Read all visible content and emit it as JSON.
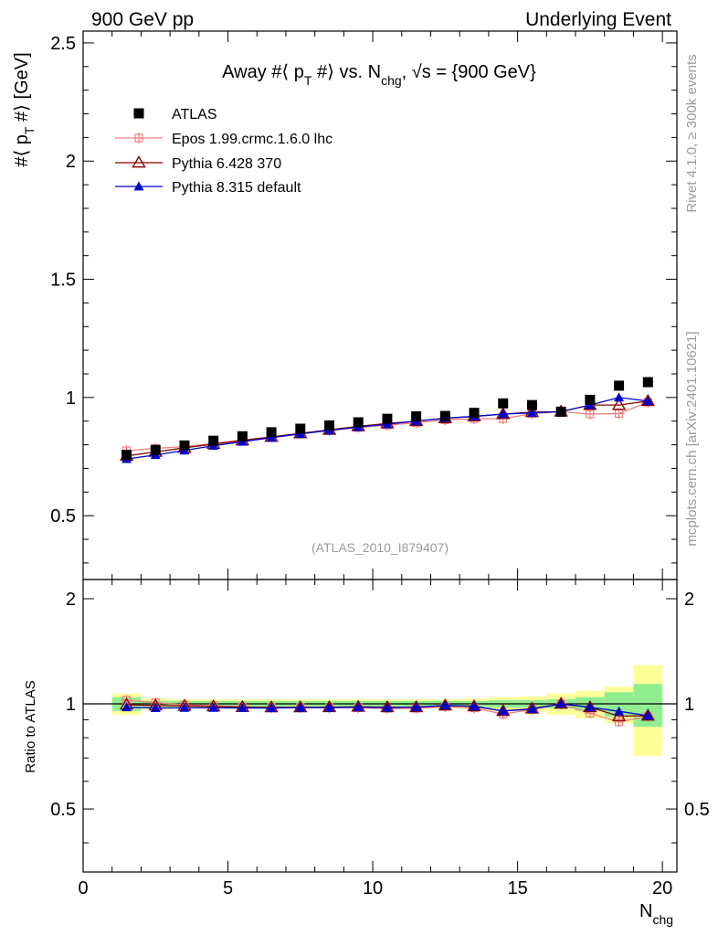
{
  "header": {
    "left": "900 GeV pp",
    "right": "Underlying Event"
  },
  "title": {
    "prefix": "Away #⟨ p",
    "sub_t": "T",
    "middle": " #⟩ vs. N",
    "sub_chg": "chg",
    "suffix": ", √s = {900 GeV}"
  },
  "side_text": {
    "rivet": "Rivet 4.1.0, ≥ 300k events",
    "mcplots": "mcplots.cern.ch [arXiv:2401.10621]"
  },
  "watermark": "(ATLAS_2010_I879407)",
  "colors": {
    "atlas": "#000000",
    "epos": "#f08080",
    "pythia6": "#8b0000",
    "pythia8": "#0000cd",
    "band_inner": "#90ee90",
    "band_outer": "#ffff99"
  },
  "chart_data": [
    {
      "type": "scatter",
      "panel": "main",
      "ylabel_parts": {
        "a": "#⟨ p",
        "sub": "T",
        "b": " #⟩ [GeV]"
      },
      "xlim": [
        0,
        20.5
      ],
      "ylim": [
        0.23,
        2.55
      ],
      "yticks": [
        0.5,
        1,
        1.5,
        2,
        2.5
      ],
      "ytick_labels": [
        "0.5",
        "1",
        "1.5",
        "2",
        "2.5"
      ],
      "x": [
        1.5,
        2.5,
        3.5,
        4.5,
        5.5,
        6.5,
        7.5,
        8.5,
        9.5,
        10.5,
        11.5,
        12.5,
        13.5,
        14.5,
        15.5,
        16.5,
        17.5,
        18.5,
        19.5
      ],
      "series": [
        {
          "name": "ATLAS",
          "key": "atlas",
          "marker": "square",
          "values": [
            0.757,
            0.778,
            0.797,
            0.817,
            0.836,
            0.853,
            0.868,
            0.882,
            0.895,
            0.91,
            0.92,
            0.922,
            0.935,
            0.975,
            0.968,
            0.94,
            0.99,
            1.05,
            1.065
          ]
        },
        {
          "name": "Epos 1.99.crmc.1.6.0 lhc",
          "key": "epos",
          "marker": "cross",
          "values": [
            0.775,
            0.785,
            0.792,
            0.806,
            0.82,
            0.833,
            0.848,
            0.86,
            0.873,
            0.883,
            0.893,
            0.905,
            0.91,
            0.91,
            0.932,
            0.94,
            0.93,
            0.932,
            0.98
          ]
        },
        {
          "name": "Pythia 6.428 370",
          "key": "pythia6",
          "marker": "triangle-open",
          "values": [
            0.753,
            0.77,
            0.787,
            0.803,
            0.818,
            0.833,
            0.848,
            0.863,
            0.878,
            0.89,
            0.9,
            0.912,
            0.92,
            0.93,
            0.938,
            0.94,
            0.968,
            0.968,
            0.985
          ]
        },
        {
          "name": "Pythia 8.315 default",
          "key": "pythia8",
          "marker": "triangle-filled",
          "values": [
            0.74,
            0.757,
            0.776,
            0.796,
            0.813,
            0.83,
            0.846,
            0.861,
            0.875,
            0.887,
            0.9,
            0.913,
            0.92,
            0.93,
            0.935,
            0.94,
            0.968,
            1.0,
            0.985
          ]
        }
      ]
    },
    {
      "type": "scatter",
      "panel": "ratio",
      "ylabel": "Ratio to ATLAS",
      "xlabel_parts": {
        "a": "N",
        "sub": "chg"
      },
      "xlim": [
        0,
        20.5
      ],
      "ylim": [
        0.33,
        2.27
      ],
      "xticks": [
        0,
        5,
        10,
        15,
        20
      ],
      "xtick_labels": [
        "0",
        "5",
        "10",
        "15",
        "20"
      ],
      "yticks": [
        0.5,
        1,
        2
      ],
      "ytick_labels": [
        "0.5",
        "1",
        "2"
      ],
      "x": [
        1.5,
        2.5,
        3.5,
        4.5,
        5.5,
        6.5,
        7.5,
        8.5,
        9.5,
        10.5,
        11.5,
        12.5,
        13.5,
        14.5,
        15.5,
        16.5,
        17.5,
        18.5,
        19.5
      ],
      "band_inner": [
        0.045,
        0.02,
        0.02,
        0.02,
        0.02,
        0.02,
        0.02,
        0.02,
        0.02,
        0.02,
        0.02,
        0.02,
        0.02,
        0.025,
        0.025,
        0.03,
        0.045,
        0.08,
        0.14
      ],
      "band_outer": [
        0.07,
        0.035,
        0.03,
        0.03,
        0.03,
        0.03,
        0.03,
        0.03,
        0.03,
        0.03,
        0.03,
        0.03,
        0.035,
        0.045,
        0.05,
        0.07,
        0.09,
        0.12,
        0.29
      ],
      "series": [
        {
          "name": "Epos 1.99.crmc.1.6.0 lhc",
          "key": "epos",
          "marker": "cross",
          "values": [
            1.025,
            1.008,
            0.994,
            0.987,
            0.981,
            0.977,
            0.977,
            0.975,
            0.975,
            0.97,
            0.971,
            0.982,
            0.973,
            0.935,
            0.963,
            1.0,
            0.94,
            0.888,
            0.92
          ]
        },
        {
          "name": "Pythia 6.428 370",
          "key": "pythia6",
          "marker": "triangle-open",
          "values": [
            0.994,
            0.989,
            0.987,
            0.983,
            0.979,
            0.977,
            0.977,
            0.978,
            0.981,
            0.978,
            0.978,
            0.989,
            0.984,
            0.954,
            0.969,
            1.0,
            0.978,
            0.922,
            0.925
          ]
        },
        {
          "name": "Pythia 8.315 default",
          "key": "pythia8",
          "marker": "triangle-filled",
          "values": [
            0.978,
            0.973,
            0.974,
            0.974,
            0.973,
            0.973,
            0.975,
            0.976,
            0.978,
            0.975,
            0.978,
            0.99,
            0.984,
            0.954,
            0.966,
            1.0,
            0.978,
            0.952,
            0.925
          ]
        }
      ]
    }
  ]
}
